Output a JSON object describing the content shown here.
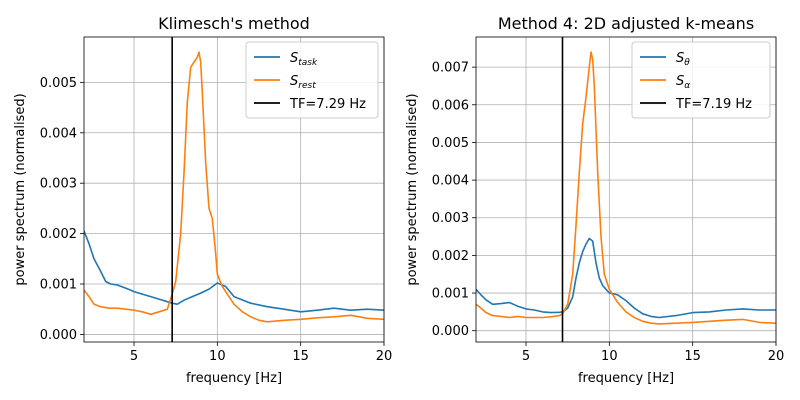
{
  "chart_data": [
    {
      "type": "line",
      "title": "Klimesch's method",
      "xlabel": "frequency [Hz]",
      "ylabel": "power spectrum (normalised)",
      "xlim": [
        2,
        20
      ],
      "ylim": [
        -0.00015,
        0.0059
      ],
      "xticks": [
        5,
        10,
        15,
        20
      ],
      "xtick_labels": [
        "5",
        "10",
        "15",
        "20"
      ],
      "yticks": [
        0,
        0.001,
        0.002,
        0.003,
        0.004,
        0.005
      ],
      "ytick_labels": [
        "0.000",
        "0.001",
        "0.002",
        "0.003",
        "0.004",
        "0.005"
      ],
      "grid": true,
      "legend_position": "top-right",
      "vline": {
        "x": 7.29,
        "label": "TF=7.29 Hz",
        "color": "#000000"
      },
      "series": [
        {
          "name": "S_task",
          "label_main": "S",
          "label_sub": "task",
          "color": "#1f77b4",
          "x": [
            2.0,
            2.3,
            2.6,
            3.0,
            3.3,
            3.6,
            4.0,
            4.5,
            5.0,
            5.5,
            6.0,
            6.5,
            7.0,
            7.29,
            7.6,
            8.0,
            8.5,
            9.0,
            9.5,
            10.0,
            10.5,
            11.0,
            12.0,
            13.0,
            14.0,
            15.0,
            16.0,
            17.0,
            18.0,
            19.0,
            20.0
          ],
          "y": [
            0.00205,
            0.0018,
            0.0015,
            0.00125,
            0.00105,
            0.001,
            0.00098,
            0.00092,
            0.00085,
            0.0008,
            0.00075,
            0.0007,
            0.00065,
            0.00062,
            0.0006,
            0.00068,
            0.00075,
            0.00082,
            0.0009,
            0.00102,
            0.00095,
            0.00075,
            0.00062,
            0.00055,
            0.0005,
            0.00045,
            0.00048,
            0.00052,
            0.00048,
            0.0005,
            0.00048
          ]
        },
        {
          "name": "S_rest",
          "label_main": "S",
          "label_sub": "rest",
          "color": "#ff7f0e",
          "x": [
            2.0,
            2.3,
            2.6,
            3.0,
            3.5,
            4.0,
            4.5,
            5.0,
            5.5,
            6.0,
            6.5,
            7.0,
            7.29,
            7.5,
            7.8,
            8.0,
            8.2,
            8.4,
            8.6,
            8.8,
            8.9,
            9.0,
            9.1,
            9.3,
            9.5,
            9.7,
            9.9,
            10.0,
            10.3,
            10.6,
            11.0,
            11.5,
            12.0,
            12.5,
            13.0,
            14.0,
            15.0,
            16.0,
            17.0,
            18.0,
            19.0,
            20.0
          ],
          "y": [
            0.00088,
            0.00075,
            0.0006,
            0.00055,
            0.00052,
            0.00052,
            0.0005,
            0.00048,
            0.00045,
            0.0004,
            0.00045,
            0.0005,
            0.0008,
            0.00105,
            0.002,
            0.0032,
            0.0046,
            0.0053,
            0.0054,
            0.0055,
            0.0056,
            0.0054,
            0.0048,
            0.0034,
            0.0025,
            0.0023,
            0.0016,
            0.0012,
            0.00095,
            0.0008,
            0.0006,
            0.00045,
            0.00035,
            0.00028,
            0.00025,
            0.00028,
            0.0003,
            0.00033,
            0.00035,
            0.00038,
            0.00032,
            0.0003
          ]
        }
      ]
    },
    {
      "type": "line",
      "title": "Method 4: 2D adjusted k-means",
      "xlabel": "frequency [Hz]",
      "ylabel": "power spectrum (normalised)",
      "xlim": [
        2,
        20
      ],
      "ylim": [
        -0.0003,
        0.0078
      ],
      "xticks": [
        5,
        10,
        15,
        20
      ],
      "xtick_labels": [
        "5",
        "10",
        "15",
        "20"
      ],
      "yticks": [
        0,
        0.001,
        0.002,
        0.003,
        0.004,
        0.005,
        0.006,
        0.007
      ],
      "ytick_labels": [
        "0.000",
        "0.001",
        "0.002",
        "0.003",
        "0.004",
        "0.005",
        "0.006",
        "0.007"
      ],
      "grid": true,
      "legend_position": "top-right",
      "vline": {
        "x": 7.19,
        "label": "TF=7.19 Hz",
        "color": "#000000"
      },
      "series": [
        {
          "name": "S_theta",
          "label_main": "S",
          "label_sub": "θ",
          "color": "#1f77b4",
          "x": [
            2.0,
            2.3,
            2.6,
            3.0,
            3.5,
            4.0,
            4.5,
            5.0,
            5.5,
            6.0,
            6.5,
            7.0,
            7.19,
            7.5,
            7.8,
            8.0,
            8.2,
            8.4,
            8.6,
            8.8,
            9.0,
            9.2,
            9.4,
            9.6,
            9.8,
            10.0,
            10.5,
            11.0,
            11.5,
            12.0,
            12.5,
            13.0,
            14.0,
            15.0,
            16.0,
            17.0,
            18.0,
            19.0,
            20.0
          ],
          "y": [
            0.0011,
            0.00095,
            0.00082,
            0.0007,
            0.00072,
            0.00075,
            0.00065,
            0.00058,
            0.00055,
            0.0005,
            0.00048,
            0.00049,
            0.0005,
            0.0006,
            0.0009,
            0.0014,
            0.0018,
            0.0021,
            0.0023,
            0.00245,
            0.00238,
            0.0018,
            0.0014,
            0.0012,
            0.0011,
            0.001,
            0.00095,
            0.0008,
            0.0006,
            0.00045,
            0.00038,
            0.00035,
            0.0004,
            0.00048,
            0.0005,
            0.00055,
            0.00058,
            0.00055,
            0.00055
          ]
        },
        {
          "name": "S_alpha",
          "label_main": "S",
          "label_sub": "α",
          "color": "#ff7f0e",
          "x": [
            2.0,
            2.3,
            2.6,
            3.0,
            3.5,
            4.0,
            4.5,
            5.0,
            5.5,
            6.0,
            6.5,
            7.0,
            7.19,
            7.5,
            7.8,
            8.0,
            8.2,
            8.4,
            8.6,
            8.8,
            8.9,
            9.0,
            9.1,
            9.3,
            9.5,
            9.7,
            10.0,
            10.5,
            11.0,
            11.5,
            12.0,
            12.5,
            13.0,
            14.0,
            15.0,
            16.0,
            17.0,
            18.0,
            19.0,
            20.0
          ],
          "y": [
            0.0007,
            0.0006,
            0.00048,
            0.0004,
            0.00038,
            0.00035,
            0.00038,
            0.00035,
            0.00035,
            0.00035,
            0.00037,
            0.0004,
            0.00045,
            0.0007,
            0.0015,
            0.0028,
            0.0042,
            0.0055,
            0.0062,
            0.007,
            0.0074,
            0.0072,
            0.0065,
            0.0042,
            0.0025,
            0.0015,
            0.0011,
            0.00075,
            0.0005,
            0.00035,
            0.00025,
            0.0002,
            0.00018,
            0.0002,
            0.00022,
            0.00025,
            0.00028,
            0.0003,
            0.00022,
            0.0002
          ]
        }
      ]
    }
  ]
}
